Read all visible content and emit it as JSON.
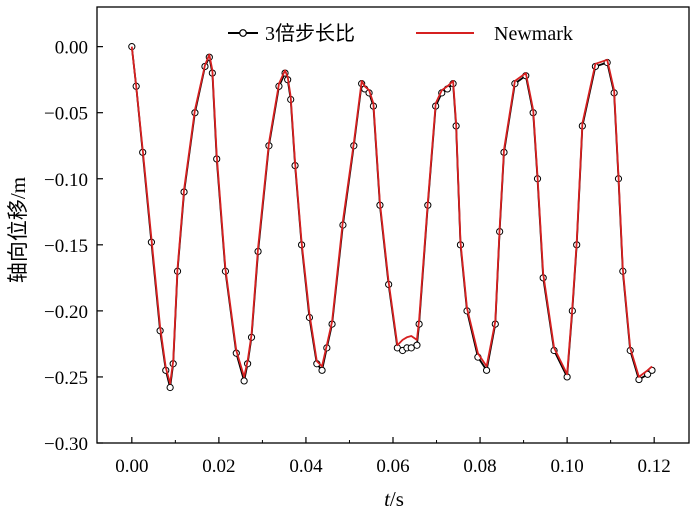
{
  "chart_data": {
    "type": "line",
    "xlabel_italic": "t",
    "xlabel_unit": "/s",
    "ylabel": "轴向位移/m",
    "xlim": [
      -0.008,
      0.128
    ],
    "ylim": [
      -0.3,
      0.03
    ],
    "x_ticks": [
      0.0,
      0.02,
      0.04,
      0.06,
      0.08,
      0.1,
      0.12
    ],
    "x_tick_labels": [
      "0.00",
      "0.02",
      "0.04",
      "0.06",
      "0.08",
      "0.10",
      "0.12"
    ],
    "y_ticks": [
      0.0,
      -0.05,
      -0.1,
      -0.15,
      -0.2,
      -0.25,
      -0.3
    ],
    "y_tick_labels": [
      "0.00",
      "−0.05",
      "−0.10",
      "−0.15",
      "−0.20",
      "−0.25",
      "−0.30"
    ],
    "legend_position": "top-center",
    "series": [
      {
        "name": "3倍步长比",
        "color": "#000000",
        "marker": "open-circle",
        "x": [
          0.0,
          0.001,
          0.0025,
          0.0045,
          0.0065,
          0.0078,
          0.0088,
          0.0095,
          0.0105,
          0.012,
          0.0145,
          0.0168,
          0.0178,
          0.0185,
          0.0195,
          0.0215,
          0.024,
          0.0258,
          0.0266,
          0.0275,
          0.029,
          0.0315,
          0.0338,
          0.0352,
          0.0358,
          0.0365,
          0.0375,
          0.039,
          0.0408,
          0.0425,
          0.0437,
          0.0448,
          0.046,
          0.0485,
          0.051,
          0.0528,
          0.0535,
          0.0545,
          0.0555,
          0.057,
          0.059,
          0.061,
          0.0622,
          0.0632,
          0.0642,
          0.0655,
          0.066,
          0.068,
          0.0698,
          0.0712,
          0.0725,
          0.0738,
          0.0745,
          0.0755,
          0.077,
          0.0795,
          0.0815,
          0.0835,
          0.0845,
          0.0855,
          0.088,
          0.0905,
          0.0922,
          0.0932,
          0.0945,
          0.097,
          0.1,
          0.1012,
          0.1022,
          0.1035,
          0.1065,
          0.1092,
          0.1108,
          0.1118,
          0.1128,
          0.1145,
          0.1165,
          0.1185,
          0.1195
        ],
        "y": [
          0.0,
          -0.03,
          -0.08,
          -0.148,
          -0.215,
          -0.245,
          -0.258,
          -0.24,
          -0.17,
          -0.11,
          -0.05,
          -0.015,
          -0.008,
          -0.02,
          -0.085,
          -0.17,
          -0.232,
          -0.253,
          -0.24,
          -0.22,
          -0.155,
          -0.075,
          -0.03,
          -0.02,
          -0.025,
          -0.04,
          -0.09,
          -0.15,
          -0.205,
          -0.24,
          -0.245,
          -0.228,
          -0.21,
          -0.135,
          -0.075,
          -0.028,
          -0.032,
          -0.035,
          -0.045,
          -0.12,
          -0.18,
          -0.228,
          -0.23,
          -0.228,
          -0.228,
          -0.226,
          -0.21,
          -0.12,
          -0.045,
          -0.035,
          -0.032,
          -0.028,
          -0.06,
          -0.15,
          -0.2,
          -0.235,
          -0.245,
          -0.21,
          -0.14,
          -0.08,
          -0.028,
          -0.022,
          -0.05,
          -0.1,
          -0.175,
          -0.23,
          -0.25,
          -0.2,
          -0.15,
          -0.06,
          -0.015,
          -0.012,
          -0.035,
          -0.1,
          -0.17,
          -0.23,
          -0.252,
          -0.248,
          -0.245
        ]
      },
      {
        "name": "Newmark",
        "color": "#d62020",
        "marker": "none",
        "x": [
          0.0,
          0.001,
          0.0025,
          0.0045,
          0.0065,
          0.0078,
          0.0088,
          0.0095,
          0.0105,
          0.012,
          0.0145,
          0.0168,
          0.0178,
          0.0185,
          0.0195,
          0.0215,
          0.024,
          0.0258,
          0.0266,
          0.0275,
          0.029,
          0.0315,
          0.0338,
          0.0352,
          0.0358,
          0.0365,
          0.0375,
          0.039,
          0.0408,
          0.0425,
          0.0437,
          0.0448,
          0.046,
          0.0485,
          0.051,
          0.0528,
          0.0535,
          0.0545,
          0.0555,
          0.057,
          0.059,
          0.061,
          0.0622,
          0.0632,
          0.0642,
          0.0655,
          0.066,
          0.068,
          0.0698,
          0.0712,
          0.0725,
          0.0738,
          0.0745,
          0.0755,
          0.077,
          0.0795,
          0.0815,
          0.0835,
          0.0845,
          0.0855,
          0.088,
          0.0905,
          0.0922,
          0.0932,
          0.0945,
          0.097,
          0.1,
          0.1012,
          0.1022,
          0.1035,
          0.1065,
          0.1092,
          0.1108,
          0.1118,
          0.1128,
          0.1145,
          0.1165,
          0.1185,
          0.1195
        ],
        "y": [
          0.0,
          -0.03,
          -0.078,
          -0.145,
          -0.212,
          -0.243,
          -0.255,
          -0.238,
          -0.168,
          -0.108,
          -0.048,
          -0.014,
          -0.006,
          -0.018,
          -0.082,
          -0.168,
          -0.23,
          -0.25,
          -0.238,
          -0.218,
          -0.152,
          -0.073,
          -0.028,
          -0.018,
          -0.023,
          -0.038,
          -0.088,
          -0.148,
          -0.202,
          -0.238,
          -0.242,
          -0.226,
          -0.208,
          -0.132,
          -0.073,
          -0.026,
          -0.03,
          -0.033,
          -0.043,
          -0.118,
          -0.178,
          -0.226,
          -0.222,
          -0.22,
          -0.219,
          -0.222,
          -0.207,
          -0.118,
          -0.043,
          -0.033,
          -0.03,
          -0.026,
          -0.058,
          -0.148,
          -0.198,
          -0.232,
          -0.242,
          -0.208,
          -0.138,
          -0.078,
          -0.026,
          -0.02,
          -0.048,
          -0.098,
          -0.172,
          -0.228,
          -0.248,
          -0.198,
          -0.148,
          -0.058,
          -0.013,
          -0.01,
          -0.033,
          -0.098,
          -0.168,
          -0.228,
          -0.25,
          -0.245,
          -0.242
        ]
      }
    ]
  }
}
